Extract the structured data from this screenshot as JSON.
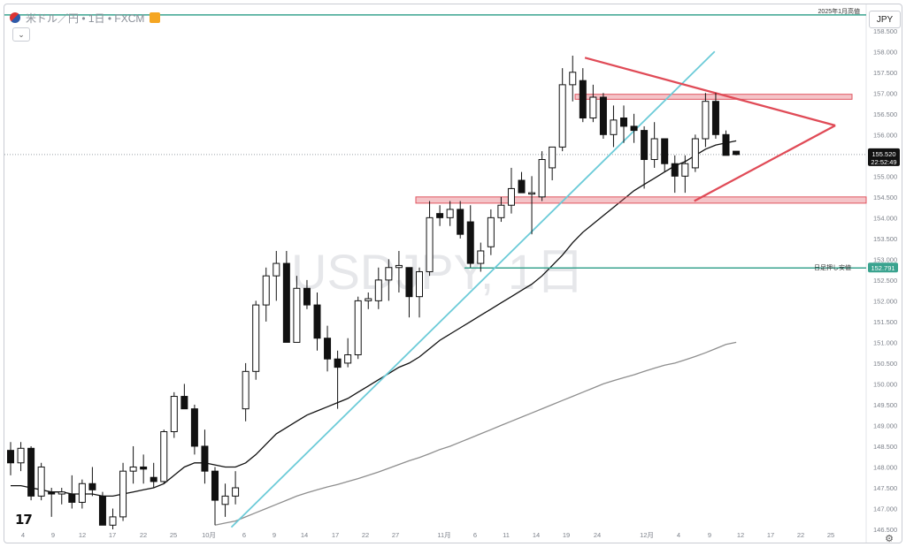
{
  "header": {
    "symbol": "米ドル／円 • 1日 • FXCM",
    "currency": "JPY"
  },
  "watermark": "USDJPY, 1日",
  "chart_data": {
    "type": "candlestick",
    "y_axis": {
      "range": [
        146.5,
        158.75
      ],
      "ticks": [
        "146.500",
        "147.000",
        "147.500",
        "148.000",
        "148.500",
        "149.000",
        "149.500",
        "150.000",
        "150.500",
        "151.000",
        "151.500",
        "152.000",
        "152.500",
        "153.000",
        "153.500",
        "154.000",
        "154.500",
        "155.000",
        "155.500",
        "156.000",
        "156.500",
        "157.000",
        "157.500",
        "158.000",
        "158.500"
      ]
    },
    "x_axis": {
      "ticks": [
        "4",
        "9",
        "12",
        "17",
        "22",
        "25",
        "10月",
        "6",
        "9",
        "14",
        "17",
        "22",
        "27",
        "11月",
        "6",
        "11",
        "14",
        "19",
        "24",
        "12月",
        "4",
        "9",
        "12",
        "17",
        "22",
        "25"
      ]
    },
    "candles": [
      [
        148.4,
        148.6,
        147.8,
        148.1
      ],
      [
        148.1,
        148.6,
        147.9,
        148.45
      ],
      [
        148.45,
        148.5,
        147.2,
        147.3
      ],
      [
        147.3,
        148.1,
        147.2,
        148.0
      ],
      [
        147.4,
        147.5,
        146.8,
        147.35
      ],
      [
        147.35,
        147.5,
        147.1,
        147.4
      ],
      [
        147.35,
        147.8,
        147.0,
        147.15
      ],
      [
        147.15,
        147.7,
        147.0,
        147.6
      ],
      [
        147.6,
        148.0,
        147.3,
        147.45
      ],
      [
        147.3,
        147.4,
        146.6,
        146.6
      ],
      [
        146.6,
        147.0,
        146.5,
        146.8
      ],
      [
        146.8,
        148.1,
        146.7,
        147.9
      ],
      [
        147.9,
        148.5,
        147.6,
        148.0
      ],
      [
        148.0,
        148.3,
        147.6,
        147.95
      ],
      [
        147.75,
        148.1,
        147.5,
        147.65
      ],
      [
        147.65,
        148.9,
        147.6,
        148.85
      ],
      [
        148.85,
        149.8,
        148.7,
        149.7
      ],
      [
        149.7,
        150.0,
        149.5,
        149.4
      ],
      [
        149.4,
        149.5,
        148.3,
        148.5
      ],
      [
        148.5,
        148.9,
        147.6,
        147.9
      ],
      [
        147.9,
        148.0,
        146.6,
        147.2
      ],
      [
        147.1,
        147.6,
        146.8,
        147.3
      ],
      [
        147.3,
        147.9,
        147.1,
        147.5
      ],
      [
        149.4,
        150.5,
        149.1,
        150.3
      ],
      [
        150.3,
        152.0,
        150.1,
        151.9
      ],
      [
        151.9,
        152.8,
        151.5,
        152.6
      ],
      [
        152.6,
        153.2,
        152.0,
        152.9
      ],
      [
        152.9,
        153.2,
        151.0,
        151.0
      ],
      [
        151.0,
        152.6,
        151.0,
        152.3
      ],
      [
        152.3,
        152.5,
        151.8,
        151.9
      ],
      [
        151.9,
        152.2,
        150.8,
        151.1
      ],
      [
        151.1,
        151.4,
        150.3,
        150.6
      ],
      [
        150.6,
        150.8,
        149.4,
        150.4
      ],
      [
        150.5,
        151.1,
        150.4,
        150.7
      ],
      [
        150.7,
        152.1,
        150.6,
        152.0
      ],
      [
        152.0,
        152.2,
        151.8,
        152.05
      ],
      [
        152.0,
        152.8,
        151.8,
        152.5
      ],
      [
        152.5,
        153.0,
        152.0,
        152.8
      ],
      [
        152.8,
        153.2,
        152.2,
        152.85
      ],
      [
        152.8,
        152.8,
        151.6,
        152.1
      ],
      [
        152.1,
        152.8,
        151.6,
        152.7
      ],
      [
        152.7,
        154.4,
        152.6,
        154.0
      ],
      [
        154.1,
        154.3,
        153.8,
        154.0
      ],
      [
        154.0,
        154.4,
        153.8,
        154.2
      ],
      [
        154.2,
        154.4,
        153.5,
        153.6
      ],
      [
        153.9,
        154.3,
        152.8,
        152.9
      ],
      [
        152.9,
        153.4,
        152.7,
        153.2
      ],
      [
        153.3,
        154.2,
        153.1,
        154.0
      ],
      [
        154.0,
        154.5,
        153.9,
        154.3
      ],
      [
        154.3,
        155.2,
        154.1,
        154.7
      ],
      [
        154.9,
        155.1,
        154.6,
        154.6
      ],
      [
        154.6,
        155.0,
        153.6,
        154.6
      ],
      [
        154.5,
        155.6,
        154.4,
        155.4
      ],
      [
        155.2,
        155.7,
        154.9,
        155.7
      ],
      [
        155.7,
        157.6,
        155.6,
        157.2
      ],
      [
        157.2,
        157.9,
        156.8,
        157.5
      ],
      [
        157.3,
        157.6,
        156.3,
        156.4
      ],
      [
        156.4,
        157.2,
        156.3,
        156.9
      ],
      [
        156.9,
        157.0,
        155.9,
        156.0
      ],
      [
        156.0,
        156.7,
        155.7,
        156.35
      ],
      [
        156.4,
        156.7,
        155.8,
        156.2
      ],
      [
        156.2,
        156.5,
        155.8,
        156.1
      ],
      [
        156.1,
        156.2,
        154.7,
        155.4
      ],
      [
        155.4,
        156.3,
        155.2,
        155.9
      ],
      [
        155.9,
        155.9,
        155.1,
        155.3
      ],
      [
        155.3,
        155.5,
        154.6,
        155.0
      ],
      [
        155.0,
        155.5,
        154.6,
        155.3
      ],
      [
        155.2,
        156.0,
        155.1,
        155.9
      ],
      [
        155.9,
        157.0,
        155.7,
        156.8
      ],
      [
        156.8,
        157.0,
        155.9,
        156.0
      ],
      [
        156.0,
        156.1,
        155.6,
        155.5
      ],
      [
        155.6,
        155.6,
        155.5,
        155.52
      ]
    ],
    "series": [
      {
        "name": "",
        "color": "#111111",
        "values": [
          147.55,
          147.55,
          147.5,
          147.45,
          147.4,
          147.4,
          147.35,
          147.35,
          147.35,
          147.3,
          147.3,
          147.35,
          147.4,
          147.45,
          147.5,
          147.6,
          147.8,
          148.0,
          148.1,
          148.1,
          148.05,
          148.0,
          148.0,
          148.1,
          148.3,
          148.55,
          148.8,
          148.95,
          149.1,
          149.25,
          149.35,
          149.45,
          149.55,
          149.65,
          149.8,
          149.95,
          150.1,
          150.25,
          150.4,
          150.5,
          150.65,
          150.85,
          151.05,
          151.2,
          151.35,
          151.5,
          151.65,
          151.8,
          151.95,
          152.1,
          152.25,
          152.4,
          152.6,
          152.85,
          153.1,
          153.4,
          153.65,
          153.85,
          154.05,
          154.25,
          154.45,
          154.65,
          154.8,
          154.95,
          155.1,
          155.25,
          155.35,
          155.5,
          155.65,
          155.75,
          155.8,
          155.85
        ]
      },
      {
        "name": "",
        "color": "#8e8e8e",
        "values": [
          null,
          null,
          null,
          null,
          null,
          null,
          null,
          null,
          null,
          null,
          null,
          null,
          null,
          null,
          null,
          null,
          null,
          null,
          null,
          null,
          146.6,
          146.65,
          146.7,
          146.8,
          146.9,
          147.0,
          147.1,
          147.2,
          147.3,
          147.38,
          147.45,
          147.52,
          147.58,
          147.65,
          147.72,
          147.8,
          147.88,
          147.97,
          148.06,
          148.15,
          148.23,
          148.32,
          148.42,
          148.5,
          148.6,
          148.7,
          148.8,
          148.9,
          149.0,
          149.1,
          149.2,
          149.3,
          149.4,
          149.5,
          149.6,
          149.7,
          149.8,
          149.9,
          150.0,
          150.08,
          150.15,
          150.22,
          150.3,
          150.38,
          150.45,
          150.5,
          150.58,
          150.66,
          150.75,
          150.85,
          150.95,
          151.0
        ]
      }
    ],
    "horizontal_lines": [
      {
        "label": "2025年1月高値",
        "value": 158.88,
        "color": "#3aa38f"
      },
      {
        "label": "日足押し安値",
        "value": 152.791,
        "color": "#3aa38f"
      }
    ],
    "zones": [
      {
        "low": 156.85,
        "high": 156.97,
        "color": "#e05560"
      },
      {
        "low": 154.35,
        "high": 154.5,
        "color": "#e05560"
      }
    ],
    "last_price": {
      "value": "155.520",
      "time": "22:52:49"
    },
    "line_label": "152.791"
  }
}
